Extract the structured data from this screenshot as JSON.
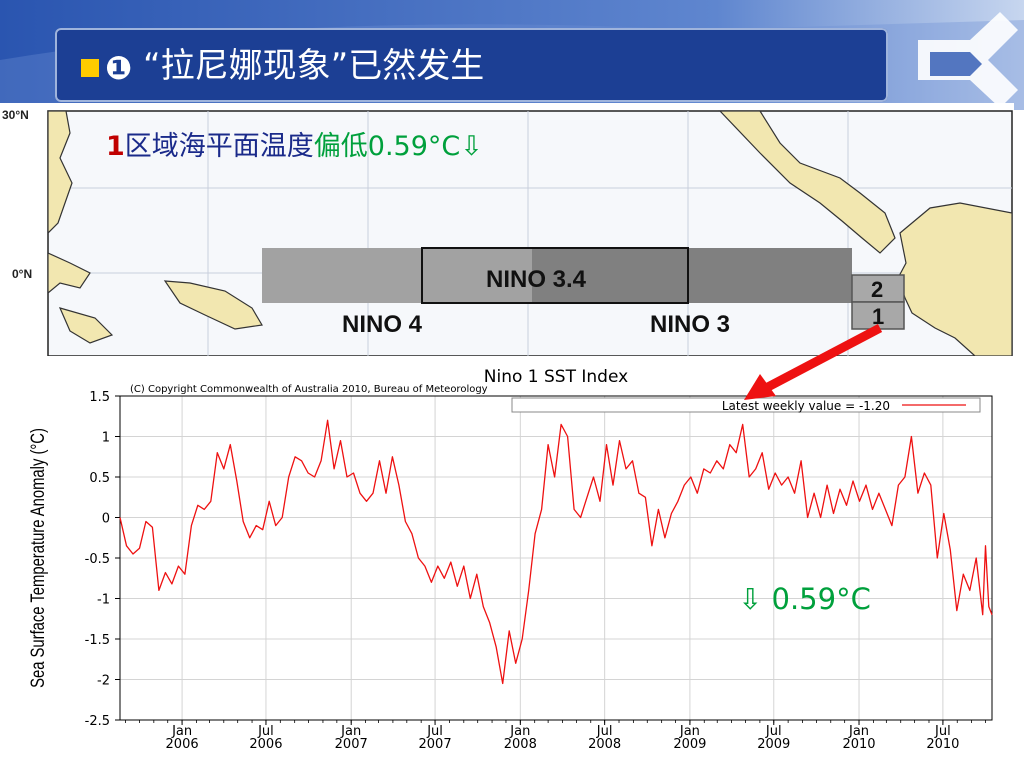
{
  "slide": {
    "title_bullet": "❶",
    "title": "“拉尼娜现象”已然发生",
    "region_note": {
      "index": "1",
      "main": "区域海平面温度",
      "deviation": "偏低0.59°C⇩"
    },
    "overlay_note": "⇩ 0.59°C",
    "colors": {
      "title_bg": "#1c3f94",
      "bullet": "#ffcc00",
      "green": "#00a03c",
      "red_arrow": "#ee1111"
    }
  },
  "map": {
    "lat_labels": [
      "30°N",
      "0°N"
    ],
    "regions": [
      {
        "name": "NINO 4"
      },
      {
        "name": "NINO 3.4"
      },
      {
        "name": "NINO 3"
      },
      {
        "name": "2"
      },
      {
        "name": "1"
      }
    ]
  },
  "chart_data": {
    "type": "line",
    "title": "Nino 1 SST Index",
    "copyright": "(C) Copyright Commonwealth of Australia 2010, Bureau of Meteorology",
    "legend": "Latest weekly value = -1.20",
    "ylabel": "Sea Surface Temperature Anomaly (°C)",
    "ylim": [
      -2.5,
      1.5
    ],
    "yticks": [
      "1.5",
      "1",
      "0.5",
      "0",
      "-0.5",
      "-1",
      "-1.5",
      "-2",
      "-2.5"
    ],
    "xlim": [
      "2005-08-20",
      "2010-10-15"
    ],
    "xticks": [
      {
        "date": "2006-01-01",
        "label": [
          "Jan",
          "2006"
        ]
      },
      {
        "date": "2006-07-01",
        "label": [
          "Jul",
          "2006"
        ]
      },
      {
        "date": "2007-01-01",
        "label": [
          "Jan",
          "2007"
        ]
      },
      {
        "date": "2007-07-01",
        "label": [
          "Jul",
          "2007"
        ]
      },
      {
        "date": "2008-01-01",
        "label": [
          "Jan",
          "2008"
        ]
      },
      {
        "date": "2008-07-01",
        "label": [
          "Jul",
          "2008"
        ]
      },
      {
        "date": "2009-01-01",
        "label": [
          "Jan",
          "2009"
        ]
      },
      {
        "date": "2009-07-01",
        "label": [
          "Jul",
          "2009"
        ]
      },
      {
        "date": "2010-01-01",
        "label": [
          "Jan",
          "2010"
        ]
      },
      {
        "date": "2010-07-01",
        "label": [
          "Jul",
          "2010"
        ]
      }
    ],
    "legend_position": "top-right",
    "grid": true,
    "series": [
      {
        "color": "#ee1111",
        "points": [
          [
            "2005-08-20",
            0.0
          ],
          [
            "2005-09-03",
            -0.35
          ],
          [
            "2005-09-17",
            -0.45
          ],
          [
            "2005-10-01",
            -0.38
          ],
          [
            "2005-10-15",
            -0.05
          ],
          [
            "2005-10-29",
            -0.12
          ],
          [
            "2005-11-12",
            -0.9
          ],
          [
            "2005-11-26",
            -0.68
          ],
          [
            "2005-12-10",
            -0.82
          ],
          [
            "2005-12-24",
            -0.6
          ],
          [
            "2006-01-07",
            -0.7
          ],
          [
            "2006-01-21",
            -0.1
          ],
          [
            "2006-02-04",
            0.15
          ],
          [
            "2006-02-18",
            0.1
          ],
          [
            "2006-03-04",
            0.2
          ],
          [
            "2006-03-18",
            0.8
          ],
          [
            "2006-04-01",
            0.6
          ],
          [
            "2006-04-15",
            0.9
          ],
          [
            "2006-04-29",
            0.45
          ],
          [
            "2006-05-13",
            -0.05
          ],
          [
            "2006-05-27",
            -0.25
          ],
          [
            "2006-06-10",
            -0.1
          ],
          [
            "2006-06-24",
            -0.15
          ],
          [
            "2006-07-08",
            0.2
          ],
          [
            "2006-07-22",
            -0.1
          ],
          [
            "2006-08-05",
            0.0
          ],
          [
            "2006-08-19",
            0.5
          ],
          [
            "2006-09-02",
            0.75
          ],
          [
            "2006-09-16",
            0.7
          ],
          [
            "2006-09-30",
            0.55
          ],
          [
            "2006-10-14",
            0.5
          ],
          [
            "2006-10-28",
            0.7
          ],
          [
            "2006-11-11",
            1.2
          ],
          [
            "2006-11-25",
            0.6
          ],
          [
            "2006-12-09",
            0.95
          ],
          [
            "2006-12-23",
            0.5
          ],
          [
            "2007-01-06",
            0.55
          ],
          [
            "2007-01-20",
            0.3
          ],
          [
            "2007-02-03",
            0.2
          ],
          [
            "2007-02-17",
            0.3
          ],
          [
            "2007-03-03",
            0.7
          ],
          [
            "2007-03-17",
            0.3
          ],
          [
            "2007-03-31",
            0.75
          ],
          [
            "2007-04-14",
            0.4
          ],
          [
            "2007-04-28",
            -0.05
          ],
          [
            "2007-05-12",
            -0.2
          ],
          [
            "2007-05-26",
            -0.5
          ],
          [
            "2007-06-09",
            -0.6
          ],
          [
            "2007-06-23",
            -0.8
          ],
          [
            "2007-07-07",
            -0.6
          ],
          [
            "2007-07-21",
            -0.75
          ],
          [
            "2007-08-04",
            -0.55
          ],
          [
            "2007-08-18",
            -0.85
          ],
          [
            "2007-09-01",
            -0.6
          ],
          [
            "2007-09-15",
            -1.0
          ],
          [
            "2007-09-29",
            -0.7
          ],
          [
            "2007-10-13",
            -1.1
          ],
          [
            "2007-10-27",
            -1.3
          ],
          [
            "2007-11-10",
            -1.6
          ],
          [
            "2007-11-24",
            -2.05
          ],
          [
            "2007-12-08",
            -1.4
          ],
          [
            "2007-12-22",
            -1.8
          ],
          [
            "2008-01-05",
            -1.5
          ],
          [
            "2008-01-19",
            -0.9
          ],
          [
            "2008-02-02",
            -0.2
          ],
          [
            "2008-02-16",
            0.1
          ],
          [
            "2008-03-01",
            0.9
          ],
          [
            "2008-03-15",
            0.5
          ],
          [
            "2008-03-29",
            1.15
          ],
          [
            "2008-04-12",
            1.0
          ],
          [
            "2008-04-26",
            0.1
          ],
          [
            "2008-05-10",
            0.0
          ],
          [
            "2008-05-24",
            0.25
          ],
          [
            "2008-06-07",
            0.5
          ],
          [
            "2008-06-21",
            0.2
          ],
          [
            "2008-07-05",
            0.9
          ],
          [
            "2008-07-19",
            0.4
          ],
          [
            "2008-08-02",
            0.95
          ],
          [
            "2008-08-16",
            0.6
          ],
          [
            "2008-08-30",
            0.7
          ],
          [
            "2008-09-13",
            0.3
          ],
          [
            "2008-09-27",
            0.25
          ],
          [
            "2008-10-11",
            -0.35
          ],
          [
            "2008-10-25",
            0.1
          ],
          [
            "2008-11-08",
            -0.25
          ],
          [
            "2008-11-22",
            0.05
          ],
          [
            "2008-12-06",
            0.2
          ],
          [
            "2008-12-20",
            0.4
          ],
          [
            "2009-01-03",
            0.5
          ],
          [
            "2009-01-17",
            0.3
          ],
          [
            "2009-01-31",
            0.6
          ],
          [
            "2009-02-14",
            0.55
          ],
          [
            "2009-02-28",
            0.7
          ],
          [
            "2009-03-14",
            0.6
          ],
          [
            "2009-03-28",
            0.9
          ],
          [
            "2009-04-11",
            0.8
          ],
          [
            "2009-04-25",
            1.15
          ],
          [
            "2009-05-09",
            0.5
          ],
          [
            "2009-05-23",
            0.6
          ],
          [
            "2009-06-06",
            0.8
          ],
          [
            "2009-06-20",
            0.35
          ],
          [
            "2009-07-04",
            0.55
          ],
          [
            "2009-07-18",
            0.4
          ],
          [
            "2009-08-01",
            0.5
          ],
          [
            "2009-08-15",
            0.3
          ],
          [
            "2009-08-29",
            0.7
          ],
          [
            "2009-09-12",
            0.0
          ],
          [
            "2009-09-26",
            0.3
          ],
          [
            "2009-10-10",
            0.0
          ],
          [
            "2009-10-24",
            0.4
          ],
          [
            "2009-11-07",
            0.05
          ],
          [
            "2009-11-21",
            0.35
          ],
          [
            "2009-12-05",
            0.15
          ],
          [
            "2009-12-19",
            0.45
          ],
          [
            "2010-01-02",
            0.2
          ],
          [
            "2010-01-16",
            0.4
          ],
          [
            "2010-01-30",
            0.1
          ],
          [
            "2010-02-13",
            0.3
          ],
          [
            "2010-02-27",
            0.1
          ],
          [
            "2010-03-13",
            -0.1
          ],
          [
            "2010-03-27",
            0.4
          ],
          [
            "2010-04-10",
            0.5
          ],
          [
            "2010-04-24",
            1.0
          ],
          [
            "2010-05-08",
            0.3
          ],
          [
            "2010-05-22",
            0.55
          ],
          [
            "2010-06-05",
            0.4
          ],
          [
            "2010-06-19",
            -0.5
          ],
          [
            "2010-07-03",
            0.05
          ],
          [
            "2010-07-17",
            -0.4
          ],
          [
            "2010-07-31",
            -1.15
          ],
          [
            "2010-08-14",
            -0.7
          ],
          [
            "2010-08-28",
            -0.9
          ],
          [
            "2010-09-11",
            -0.5
          ],
          [
            "2010-09-25",
            -1.2
          ],
          [
            "2010-10-01",
            -0.35
          ],
          [
            "2010-10-08",
            -1.1
          ],
          [
            "2010-10-15",
            -1.2
          ]
        ]
      }
    ]
  }
}
